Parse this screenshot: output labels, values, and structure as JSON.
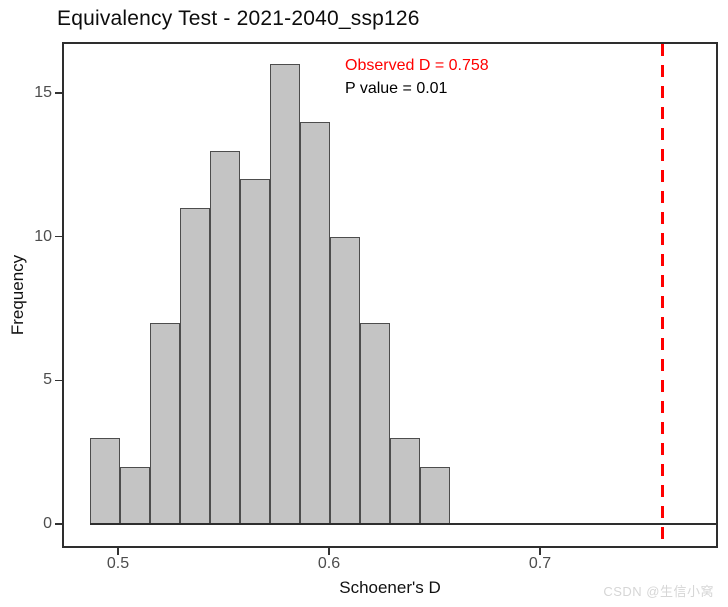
{
  "page": {
    "title": "Equivalency Test - 2021-2040_ssp126"
  },
  "chart_data": {
    "type": "bar",
    "subtype": "histogram",
    "title": "Equivalency Test - 2021-2040_ssp126",
    "xlabel": "Schoener's D",
    "ylabel": "Frequency",
    "bins": {
      "start": 0.4867,
      "width": 0.01422
    },
    "counts": [
      3,
      2,
      7,
      11,
      13,
      12,
      16,
      14,
      10,
      7,
      3,
      2
    ],
    "bin_edges": [
      0.4867,
      0.5009,
      0.5152,
      0.5294,
      0.5436,
      0.5578,
      0.572,
      0.5862,
      0.6005,
      0.6147,
      0.6289,
      0.6431,
      0.6573
    ],
    "x_tick_values": [
      0.5,
      0.6,
      0.7
    ],
    "x_tick_labels": [
      "0.5",
      "0.6",
      "0.7"
    ],
    "y_tick_values": [
      0,
      5,
      10,
      15
    ],
    "y_tick_labels": [
      "0",
      "5",
      "10",
      "15"
    ],
    "xlim": [
      0.473,
      0.784
    ],
    "ylim": [
      0,
      16.8
    ],
    "grid": false,
    "legend": false,
    "bar_fill": "#c4c4c4",
    "bar_border": "#4d4d4d",
    "vline": {
      "x": 0.758,
      "color": "#ff0000",
      "style": "dashed"
    },
    "annotations": [
      {
        "text": "Observed D = 0.758",
        "color": "#ff0000"
      },
      {
        "text": "P value = 0.01",
        "color": "#000000"
      }
    ],
    "observed_d": 0.758,
    "p_value": 0.01
  },
  "watermark": {
    "text": "CSDN @生信小窝",
    "color": "#d6d6d6"
  }
}
